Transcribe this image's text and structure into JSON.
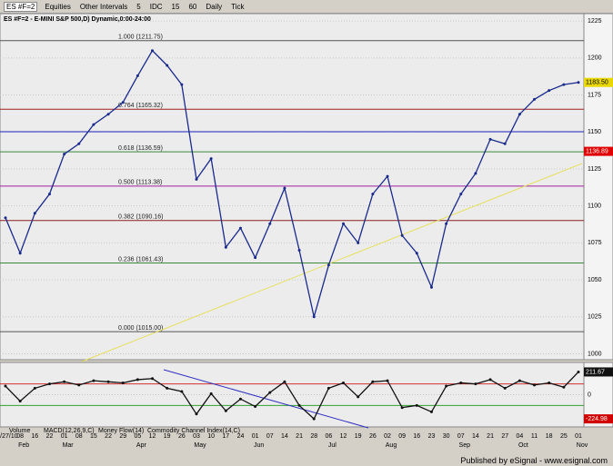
{
  "toolbar": {
    "symbol": "ES #F=2",
    "buttons": [
      "Equities",
      "Other Intervals",
      "5",
      "IDC",
      "15",
      "60",
      "Daily",
      "Tick"
    ]
  },
  "chart_data": [
    {
      "type": "line",
      "title": "ES #F=2 - E-MINI S&P 500,D) Dynamic,0:00-24:00",
      "color": "#1a2a8c",
      "categories": [
        "01/27/10",
        "08",
        "16",
        "22",
        "01",
        "08",
        "15",
        "22",
        "29",
        "05",
        "12",
        "19",
        "26",
        "03",
        "10",
        "17",
        "24",
        "01",
        "07",
        "14",
        "21",
        "28",
        "06",
        "12",
        "19",
        "26",
        "02",
        "09",
        "16",
        "23",
        "30",
        "07",
        "14",
        "21",
        "27",
        "04",
        "11",
        "18",
        "25",
        "01"
      ],
      "months": [
        null,
        "Feb",
        null,
        null,
        "Mar",
        null,
        null,
        null,
        null,
        "Apr",
        null,
        null,
        null,
        "May",
        null,
        null,
        null,
        "Jun",
        null,
        null,
        null,
        null,
        "Jul",
        null,
        null,
        null,
        "Aug",
        null,
        null,
        null,
        null,
        "Sep",
        null,
        null,
        null,
        "Oct",
        null,
        null,
        null,
        "Nov"
      ],
      "values": [
        1092,
        1068,
        1095,
        1108,
        1135,
        1142,
        1155,
        1162,
        1170,
        1188,
        1205,
        1195,
        1182,
        1118,
        1132,
        1072,
        1085,
        1065,
        1088,
        1112,
        1070,
        1025,
        1060,
        1088,
        1075,
        1108,
        1120,
        1080,
        1068,
        1045,
        1088,
        1108,
        1122,
        1145,
        1142,
        1162,
        1172,
        1178,
        1182,
        1183.5
      ],
      "ylim": [
        996,
        1230
      ],
      "yticks": [
        1000,
        1025,
        1050,
        1075,
        1100,
        1125,
        1150,
        1175,
        1200,
        1225
      ],
      "grid": true,
      "levels": [
        {
          "value": 1211.75,
          "label": "1.000 (1211.75)",
          "color": "#555"
        },
        {
          "value": 1165.32,
          "label": "0.764 (1165.32)",
          "color": "#a02020"
        },
        {
          "value": 1136.59,
          "label": "0.618 (1136.59)",
          "color": "#3a8a3a"
        },
        {
          "value": 1113.38,
          "label": "0.500 (1113.38)",
          "color": "#a020a0"
        },
        {
          "value": 1090.16,
          "label": "0.382 (1090.16)",
          "color": "#8a2020"
        },
        {
          "value": 1061.43,
          "label": "0.236 (1061.43)",
          "color": "#3a8a3a"
        },
        {
          "value": 1015.0,
          "label": "0.000 (1015.00)",
          "color": "#555"
        }
      ],
      "markers": [
        {
          "value": 1183.5,
          "label": "1183.50",
          "color": "#e8d800"
        },
        {
          "value": 1136.89,
          "label": "1136.89",
          "color": "#e00000"
        }
      ]
    },
    {
      "type": "line",
      "color": "#111",
      "values": [
        80,
        -60,
        60,
        100,
        120,
        90,
        130,
        120,
        110,
        140,
        150,
        60,
        30,
        -180,
        10,
        -150,
        -40,
        -110,
        20,
        120,
        -100,
        -224.98,
        60,
        110,
        -20,
        120,
        130,
        -120,
        -100,
        -160,
        80,
        110,
        100,
        140,
        60,
        130,
        90,
        110,
        70,
        211.67
      ],
      "ylim": [
        -300,
        300
      ],
      "yticks": [
        0
      ],
      "levels": [
        {
          "value": 100,
          "color": "#d03030"
        },
        {
          "value": -100,
          "color": "#30a030"
        }
      ],
      "markers": [
        {
          "value": 211.67,
          "color": "#111"
        },
        {
          "value": -224.98,
          "color": "#d00000"
        }
      ]
    }
  ],
  "tabs": [
    "Volume",
    "MACD(12,26,9,C)",
    "Money Flow(14)",
    "Commodity Channel Index(14,C)"
  ],
  "footer": "Published by eSignal - www.esignal.com"
}
